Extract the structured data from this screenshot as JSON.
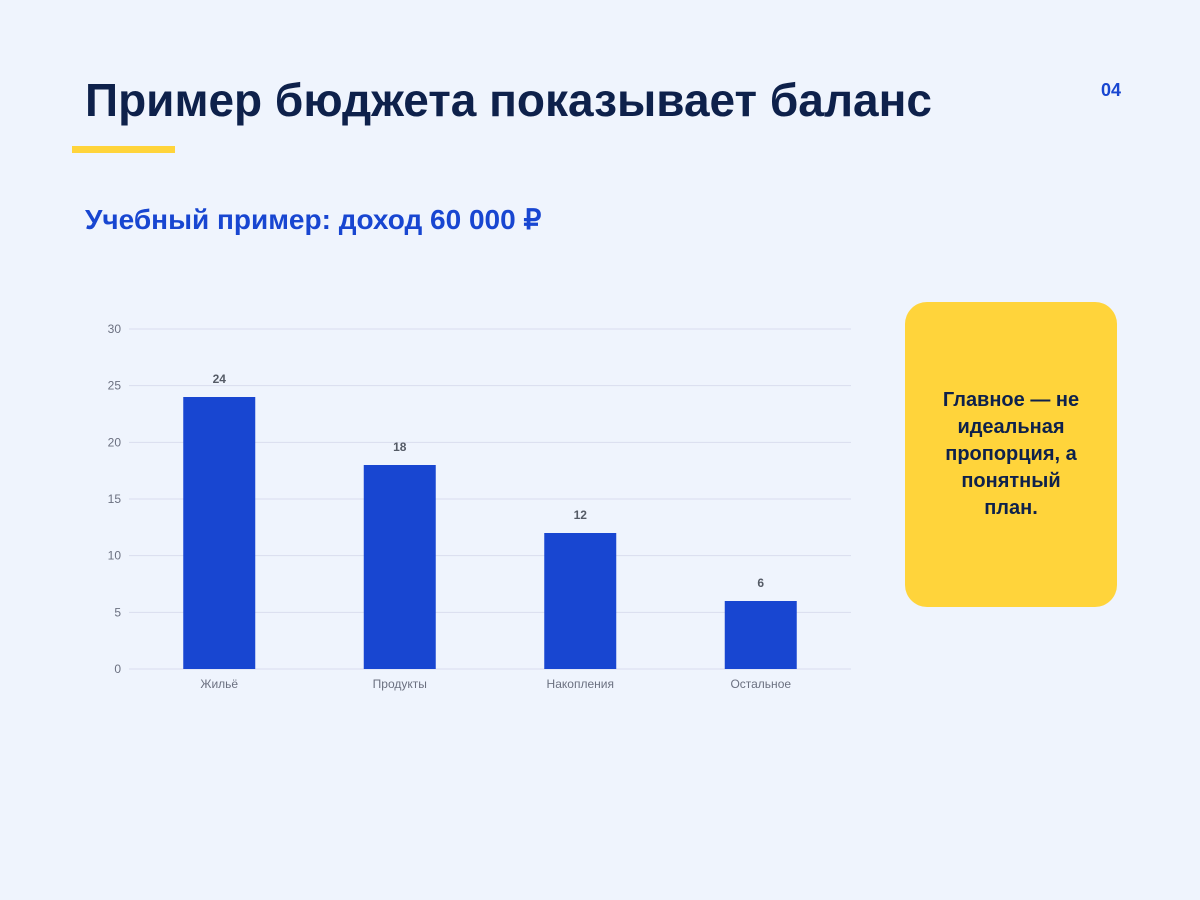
{
  "slide": {
    "title": "Пример бюджета показывает баланс",
    "page_number": "04",
    "subtitle": "Учебный пример: доход 60 000 ₽",
    "callout": "Главное — не идеальная пропорция, а понятный план."
  },
  "colors": {
    "background": "#EFF4FD",
    "title": "#0E214B",
    "accent": "#1846D1",
    "highlight": "#FFD43B",
    "grid": "#D9DDEE",
    "axis_text": "#6B7080"
  },
  "chart_data": {
    "type": "bar",
    "categories": [
      "Жильё",
      "Продукты",
      "Накопления",
      "Остальное"
    ],
    "values": [
      24,
      18,
      12,
      6
    ],
    "data_labels": [
      "24",
      "18",
      "12",
      "6"
    ],
    "ylim": [
      0,
      30
    ],
    "yticks": [
      0,
      5,
      10,
      15,
      20,
      25,
      30
    ],
    "grid": true,
    "bar_color": "#1846D1",
    "title": "",
    "xlabel": "",
    "ylabel": ""
  }
}
